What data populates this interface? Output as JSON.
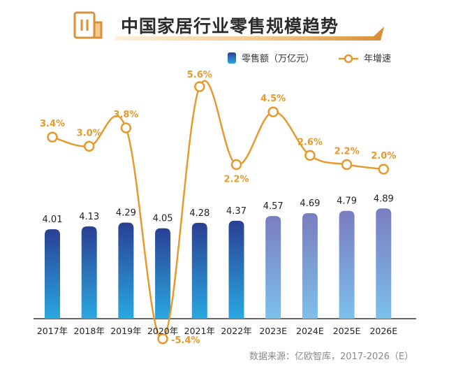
{
  "title": "中国家居行业零售规模趋势",
  "source": "数据来源：亿欧智库，2017-2026（E）",
  "chart_data": {
    "type": "bar",
    "categories": [
      "2017年",
      "2018年",
      "2019年",
      "2020年",
      "2021年",
      "2022年",
      "2023E",
      "2024E",
      "2025E",
      "2026E"
    ],
    "series": [
      {
        "name": "零售额（万亿元）",
        "type": "bar",
        "values": [
          4.01,
          4.13,
          4.29,
          4.05,
          4.28,
          4.37,
          4.57,
          4.69,
          4.79,
          4.89
        ],
        "labels": [
          "4.01",
          "4.13",
          "4.29",
          "4.05",
          "4.28",
          "4.37",
          "4.57",
          "4.69",
          "4.79",
          "4.89"
        ]
      },
      {
        "name": "年增速",
        "type": "line",
        "values": [
          3.4,
          3.0,
          3.8,
          -5.4,
          5.6,
          2.2,
          4.5,
          2.6,
          2.2,
          2.0
        ],
        "labels": [
          "3.4%",
          "3.0%",
          "3.8%",
          "-5.4%",
          "5.6%",
          "2.2%",
          "4.5%",
          "2.6%",
          "2.2%",
          "2.0%"
        ]
      }
    ],
    "legend": "top-right",
    "grid": false,
    "colors": {
      "actual_top": "#2a3f94",
      "actual_bottom": "#29a8e0",
      "estimate_top": "#7a7dc0",
      "estimate_bottom": "#7cc0ea",
      "line": "#e69a2e",
      "marker_fill": "#ffffff"
    }
  }
}
